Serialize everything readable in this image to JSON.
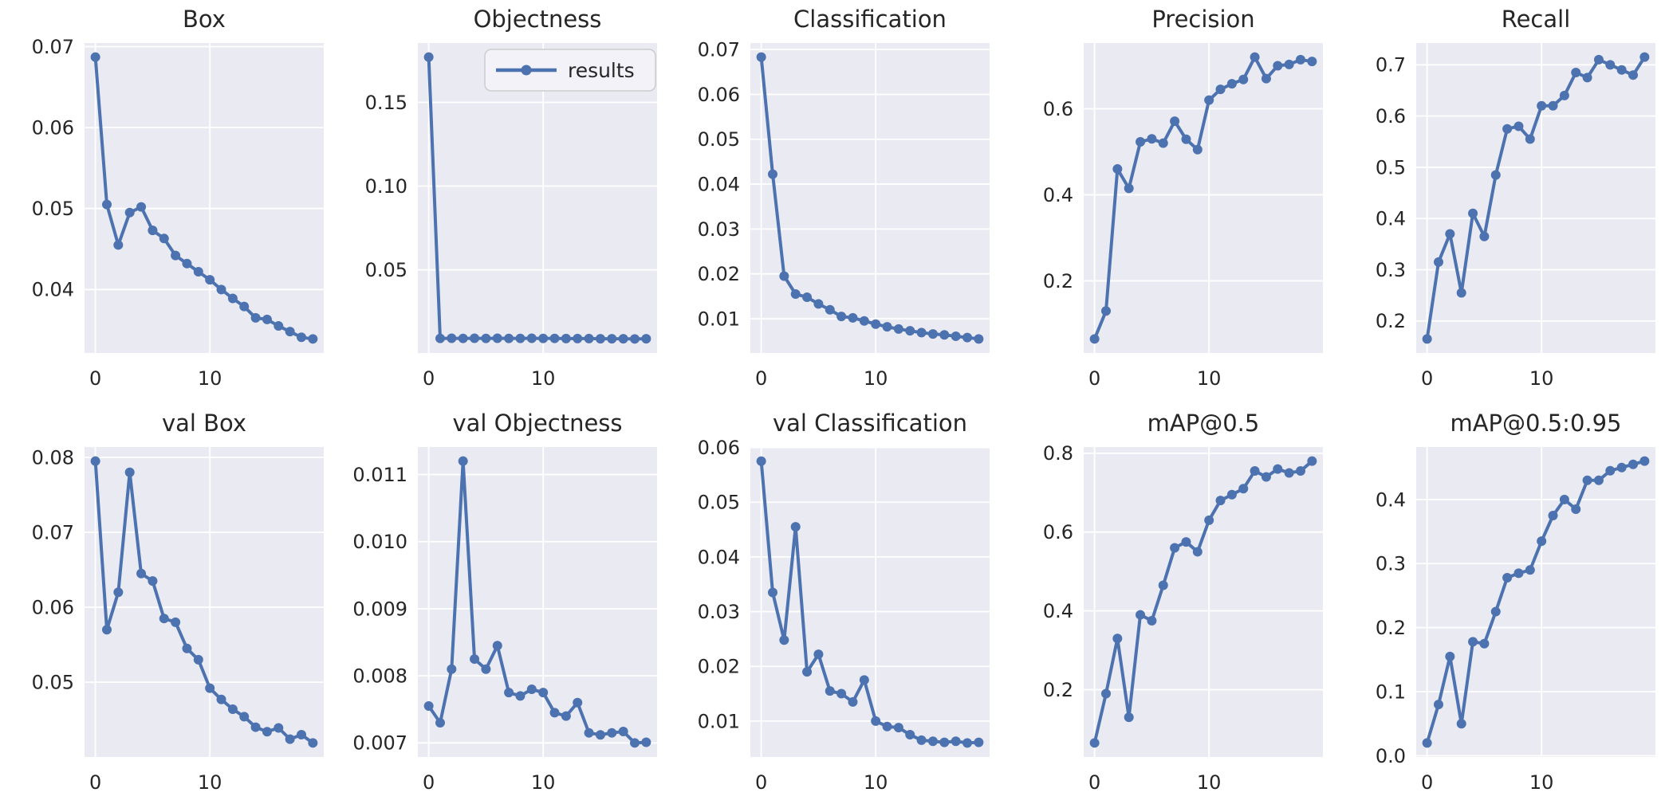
{
  "figure": {
    "background": "#ffffff",
    "axes_background": "#EAEAF2",
    "grid_color": "#ffffff",
    "line_color": "#4C72B0",
    "text_color": "#262626",
    "legend_face": "#F2F2F8",
    "legend_edge": "#CCCCCC"
  },
  "x_values": [
    0,
    1,
    2,
    3,
    4,
    5,
    6,
    7,
    8,
    9,
    10,
    11,
    12,
    13,
    14,
    15,
    16,
    17,
    18,
    19
  ],
  "xlim": [
    -0.95,
    19.95
  ],
  "xticks": [
    {
      "v": 0,
      "label": "0"
    },
    {
      "v": 10,
      "label": "10"
    }
  ],
  "chart_data": [
    {
      "id": "box",
      "type": "line",
      "title": "Box",
      "ylim": [
        0.03216,
        0.07044
      ],
      "yticks": [
        {
          "v": 0.04,
          "label": "0.04"
        },
        {
          "v": 0.05,
          "label": "0.05"
        },
        {
          "v": 0.06,
          "label": "0.06"
        },
        {
          "v": 0.07,
          "label": "0.07"
        }
      ],
      "values": [
        0.0687,
        0.0505,
        0.0455,
        0.0495,
        0.0502,
        0.0473,
        0.0463,
        0.0442,
        0.0432,
        0.0422,
        0.0412,
        0.04,
        0.0389,
        0.0379,
        0.0365,
        0.0363,
        0.0355,
        0.0348,
        0.0341,
        0.0339
      ]
    },
    {
      "id": "objectness",
      "type": "line",
      "title": "Objectness",
      "legend": {
        "label": "results"
      },
      "ylim": [
        0.00039,
        0.18541
      ],
      "yticks": [
        {
          "v": 0.05,
          "label": "0.05"
        },
        {
          "v": 0.1,
          "label": "0.10"
        },
        {
          "v": 0.15,
          "label": "0.15"
        }
      ],
      "values": [
        0.177,
        0.0091,
        0.0092,
        0.0091,
        0.0092,
        0.0091,
        0.0092,
        0.0091,
        0.0091,
        0.0092,
        0.0091,
        0.0091,
        0.009,
        0.009,
        0.009,
        0.0089,
        0.0089,
        0.0089,
        0.0088,
        0.0089
      ]
    },
    {
      "id": "classification",
      "type": "line",
      "title": "Classification",
      "ylim": [
        0.00236,
        0.07144
      ],
      "yticks": [
        {
          "v": 0.01,
          "label": "0.01"
        },
        {
          "v": 0.02,
          "label": "0.02"
        },
        {
          "v": 0.03,
          "label": "0.03"
        },
        {
          "v": 0.04,
          "label": "0.04"
        },
        {
          "v": 0.05,
          "label": "0.05"
        },
        {
          "v": 0.06,
          "label": "0.06"
        },
        {
          "v": 0.07,
          "label": "0.07"
        }
      ],
      "values": [
        0.0683,
        0.0422,
        0.0195,
        0.0155,
        0.0148,
        0.0133,
        0.012,
        0.0105,
        0.0102,
        0.0095,
        0.0088,
        0.0082,
        0.0077,
        0.0073,
        0.0069,
        0.0066,
        0.0064,
        0.0061,
        0.0058,
        0.0055
      ]
    },
    {
      "id": "precision",
      "type": "line",
      "title": "Precision",
      "ylim": [
        0.03225,
        0.75275
      ],
      "yticks": [
        {
          "v": 0.2,
          "label": "0.2"
        },
        {
          "v": 0.4,
          "label": "0.4"
        },
        {
          "v": 0.6,
          "label": "0.6"
        }
      ],
      "values": [
        0.065,
        0.13,
        0.46,
        0.415,
        0.523,
        0.53,
        0.52,
        0.571,
        0.529,
        0.505,
        0.62,
        0.645,
        0.658,
        0.668,
        0.72,
        0.67,
        0.7,
        0.703,
        0.714,
        0.71
      ]
    },
    {
      "id": "recall",
      "type": "line",
      "title": "Recall",
      "ylim": [
        0.1375,
        0.7425
      ],
      "yticks": [
        {
          "v": 0.2,
          "label": "0.2"
        },
        {
          "v": 0.3,
          "label": "0.3"
        },
        {
          "v": 0.4,
          "label": "0.4"
        },
        {
          "v": 0.5,
          "label": "0.5"
        },
        {
          "v": 0.6,
          "label": "0.6"
        },
        {
          "v": 0.7,
          "label": "0.7"
        }
      ],
      "values": [
        0.165,
        0.315,
        0.37,
        0.255,
        0.41,
        0.365,
        0.485,
        0.575,
        0.58,
        0.555,
        0.62,
        0.62,
        0.64,
        0.685,
        0.675,
        0.71,
        0.7,
        0.69,
        0.68,
        0.715
      ]
    },
    {
      "id": "val-box",
      "type": "line",
      "title": "val Box",
      "ylim": [
        0.04002,
        0.08138
      ],
      "yticks": [
        {
          "v": 0.05,
          "label": "0.05"
        },
        {
          "v": 0.06,
          "label": "0.06"
        },
        {
          "v": 0.07,
          "label": "0.07"
        },
        {
          "v": 0.08,
          "label": "0.08"
        }
      ],
      "values": [
        0.0795,
        0.057,
        0.062,
        0.078,
        0.0645,
        0.0635,
        0.0585,
        0.058,
        0.0545,
        0.053,
        0.0492,
        0.0477,
        0.0464,
        0.0454,
        0.044,
        0.0434,
        0.0439,
        0.0424,
        0.043,
        0.0419
      ]
    },
    {
      "id": "val-objectness",
      "type": "line",
      "title": "val Objectness",
      "ylim": [
        0.00679,
        0.01141
      ],
      "yticks": [
        {
          "v": 0.007,
          "label": "0.007"
        },
        {
          "v": 0.008,
          "label": "0.008"
        },
        {
          "v": 0.009,
          "label": "0.009"
        },
        {
          "v": 0.01,
          "label": "0.010"
        },
        {
          "v": 0.011,
          "label": "0.011"
        }
      ],
      "values": [
        0.00755,
        0.0073,
        0.0081,
        0.0112,
        0.00825,
        0.0081,
        0.00845,
        0.00775,
        0.0077,
        0.0078,
        0.00775,
        0.00745,
        0.0074,
        0.0076,
        0.00715,
        0.00712,
        0.00715,
        0.00717,
        0.007,
        0.00701
      ]
    },
    {
      "id": "val-classification",
      "type": "line",
      "title": "val Classification",
      "ylim": [
        0.00343,
        0.06008
      ],
      "yticks": [
        {
          "v": 0.01,
          "label": "0.01"
        },
        {
          "v": 0.02,
          "label": "0.02"
        },
        {
          "v": 0.03,
          "label": "0.03"
        },
        {
          "v": 0.04,
          "label": "0.04"
        },
        {
          "v": 0.05,
          "label": "0.05"
        },
        {
          "v": 0.06,
          "label": "0.06"
        }
      ],
      "values": [
        0.0575,
        0.0335,
        0.0248,
        0.0455,
        0.019,
        0.0222,
        0.0155,
        0.015,
        0.0135,
        0.0175,
        0.01,
        0.009,
        0.0088,
        0.0075,
        0.0065,
        0.0063,
        0.0061,
        0.0063,
        0.006,
        0.0061
      ]
    },
    {
      "id": "map05",
      "type": "line",
      "title": "mAP@0.5",
      "ylim": [
        0.02925,
        0.81575
      ],
      "yticks": [
        {
          "v": 0.2,
          "label": "0.2"
        },
        {
          "v": 0.4,
          "label": "0.4"
        },
        {
          "v": 0.6,
          "label": "0.6"
        },
        {
          "v": 0.8,
          "label": "0.8"
        }
      ],
      "values": [
        0.065,
        0.19,
        0.33,
        0.13,
        0.39,
        0.375,
        0.465,
        0.56,
        0.575,
        0.55,
        0.63,
        0.68,
        0.695,
        0.71,
        0.755,
        0.74,
        0.76,
        0.75,
        0.755,
        0.78
      ]
    },
    {
      "id": "map05-095",
      "type": "line",
      "title": "mAP@0.5:0.95",
      "ylim": [
        -0.002,
        0.482
      ],
      "yticks": [
        {
          "v": 0.0,
          "label": "0.0"
        },
        {
          "v": 0.1,
          "label": "0.1"
        },
        {
          "v": 0.2,
          "label": "0.2"
        },
        {
          "v": 0.3,
          "label": "0.3"
        },
        {
          "v": 0.4,
          "label": "0.4"
        }
      ],
      "values": [
        0.02,
        0.08,
        0.155,
        0.05,
        0.178,
        0.175,
        0.225,
        0.278,
        0.285,
        0.29,
        0.335,
        0.375,
        0.4,
        0.385,
        0.43,
        0.43,
        0.445,
        0.45,
        0.455,
        0.46
      ]
    }
  ]
}
